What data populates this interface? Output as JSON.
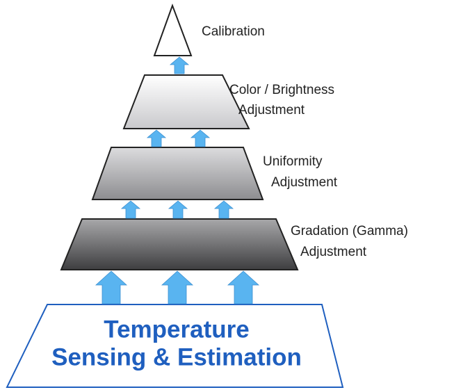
{
  "nodes": [
    {
      "lines": [
        "Calibration"
      ]
    },
    {
      "lines": [
        "Color / Brightness",
        "Adjustment"
      ]
    },
    {
      "lines": [
        "Uniformity",
        "Adjustment"
      ]
    },
    {
      "lines": [
        "Gradation (Gamma)",
        "Adjustment"
      ]
    },
    {
      "lines": [
        "Temperature",
        "Sensing & Estimation"
      ]
    }
  ]
}
